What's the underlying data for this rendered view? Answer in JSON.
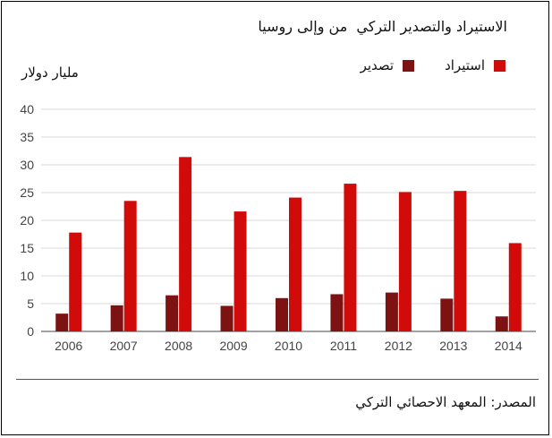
{
  "colors": {
    "import": "#d10a0a",
    "export": "#7c1212",
    "grid": "#d9d9d9",
    "axis": "#444444"
  },
  "chart_data": {
    "type": "bar",
    "title": "الاستيراد والتصدير التركي  من وإلى روسيا",
    "ylabel": "مليار دولار",
    "xlabel": "",
    "legend_position": "top-right",
    "grid": true,
    "ylim": [
      0,
      40
    ],
    "yticks": [
      0,
      5,
      10,
      15,
      20,
      25,
      30,
      35,
      40
    ],
    "categories": [
      "2006",
      "2007",
      "2008",
      "2009",
      "2010",
      "2011",
      "2012",
      "2013",
      "2014"
    ],
    "series": [
      {
        "name": "تصدير",
        "color": "#7c1212",
        "values": [
          3.2,
          4.7,
          6.5,
          4.6,
          6.0,
          6.7,
          7.0,
          5.9,
          2.7
        ]
      },
      {
        "name": "استيراد",
        "color": "#d10a0a",
        "values": [
          17.8,
          23.5,
          31.4,
          21.6,
          24.1,
          26.6,
          25.1,
          25.3,
          15.9
        ]
      }
    ],
    "source": "المصدر: المعهد الاحصائي التركي"
  }
}
